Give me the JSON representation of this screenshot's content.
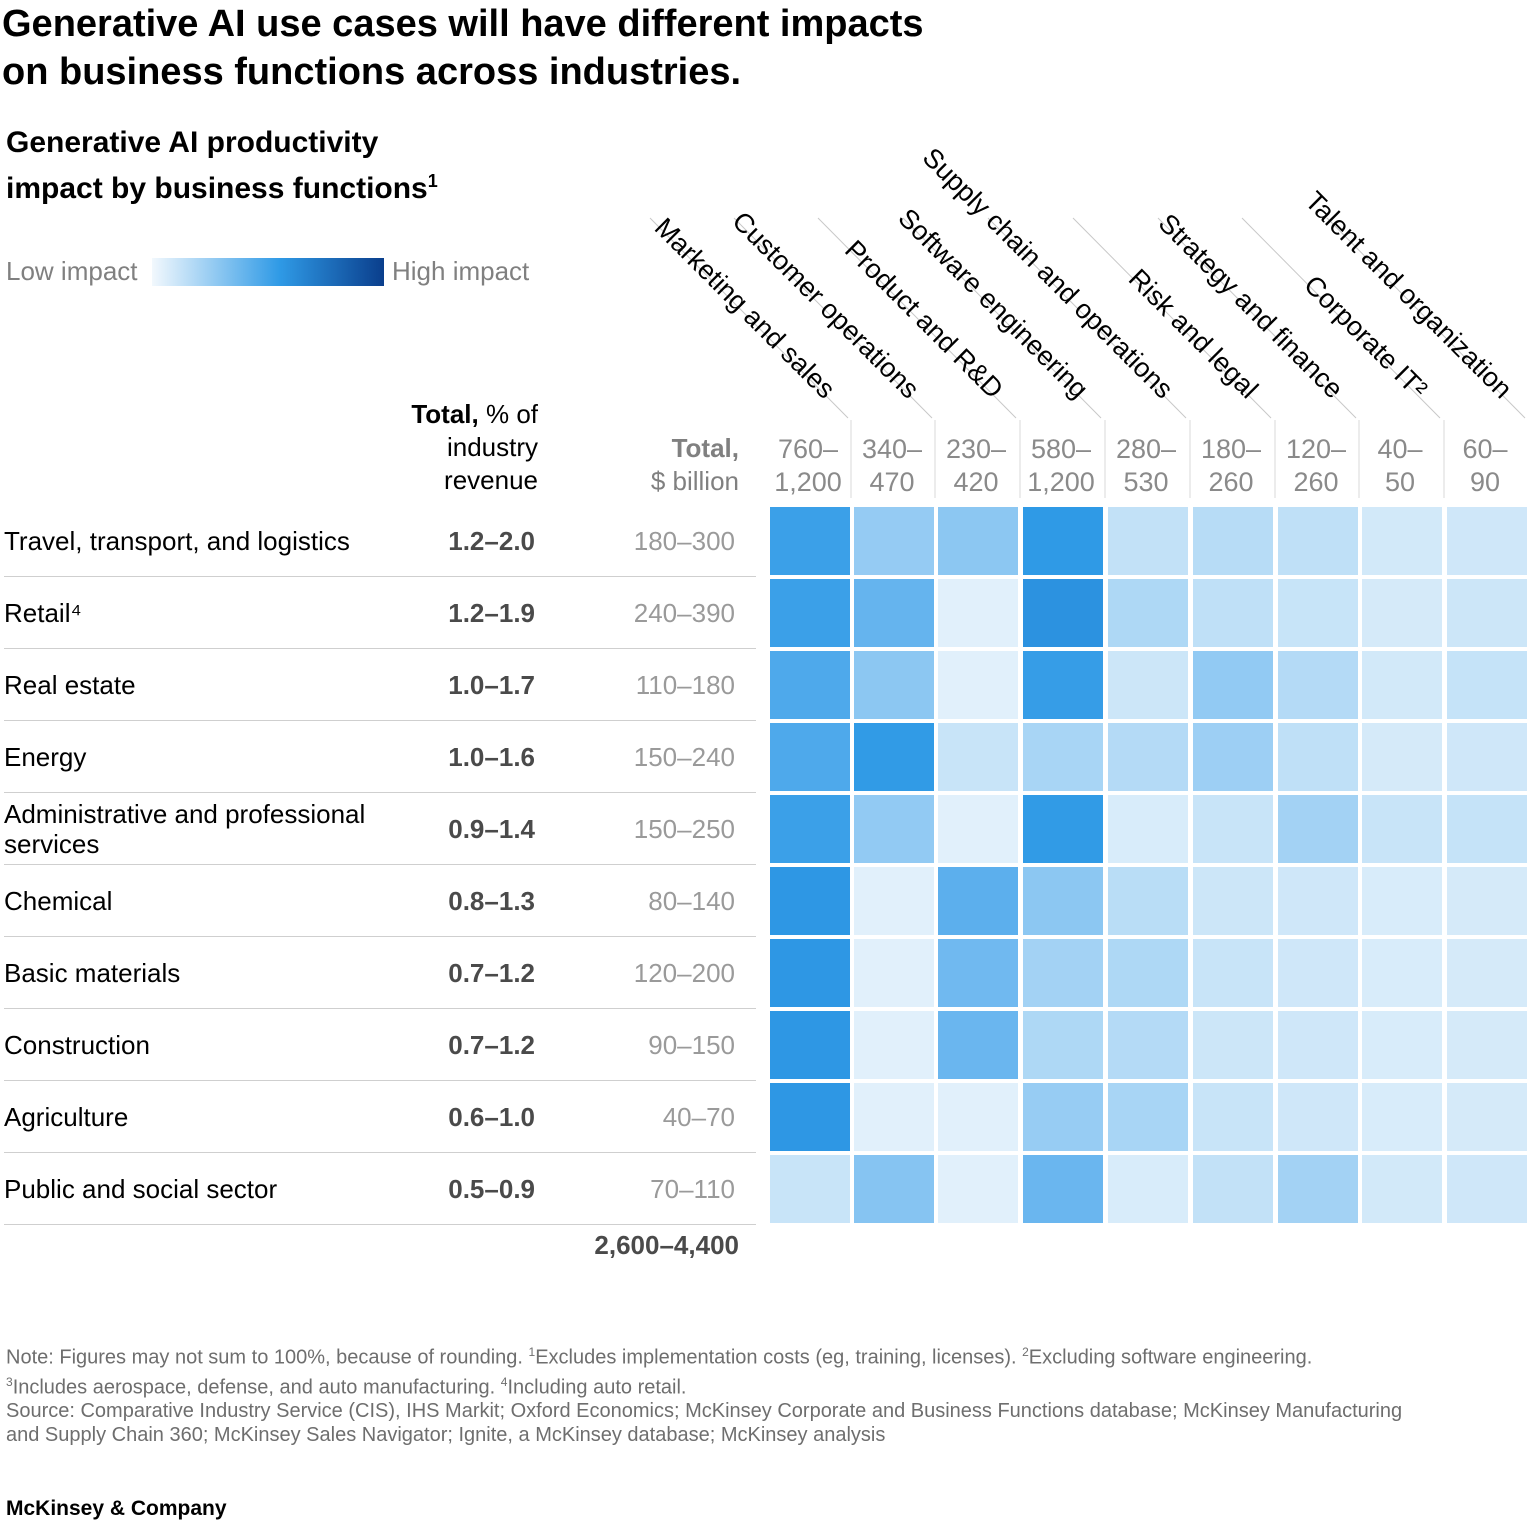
{
  "title_line1": "Generative AI use cases will have different impacts",
  "title_line2": "on business functions across industries.",
  "subtitle_line1": "Generative AI productivity",
  "subtitle_line2": "impact by business functions",
  "subtitle_sup": "1",
  "legend": {
    "low": "Low impact",
    "high": "High impact",
    "colors": [
      "#f2f8fd",
      "#2f9ae6",
      "#0a3e8c"
    ]
  },
  "columns_header": {
    "total_pct_bold": "Total,",
    "total_pct_rest": " % of",
    "total_pct_line2": "industry",
    "total_pct_line3": "revenue",
    "total_bn_line1": "Total,",
    "total_bn_line2": "$ billion"
  },
  "grand_total": "2,600–4,400",
  "chart_data": {
    "type": "heatmap",
    "title": "Generative AI productivity impact by business functions",
    "legend": {
      "low": "Low impact",
      "high": "High impact"
    },
    "columns": [
      {
        "name": "Marketing and sales",
        "total_line1": "760–",
        "total_line2": "1,200"
      },
      {
        "name": "Customer operations",
        "total_line1": "340–",
        "total_line2": "470"
      },
      {
        "name": "Product and R&D",
        "total_line1": "230–",
        "total_line2": "420"
      },
      {
        "name": "Software engineering",
        "total_line1": "580–",
        "total_line2": "1,200"
      },
      {
        "name": "Supply chain and operations",
        "total_line1": "280–",
        "total_line2": "530"
      },
      {
        "name": "Risk and legal",
        "total_line1": "180–",
        "total_line2": "260"
      },
      {
        "name": "Strategy and finance",
        "total_line1": "120–",
        "total_line2": "260"
      },
      {
        "name": "Corporate IT²",
        "total_line1": "40–",
        "total_line2": "50"
      },
      {
        "name": "Talent and organization",
        "total_line1": "60–",
        "total_line2": "90"
      }
    ],
    "rows": [
      {
        "industry": "Travel, transport, and logistics",
        "total_pct": "1.2–2.0",
        "total_bn": "180–300",
        "impact": [
          0.8,
          0.45,
          0.48,
          0.85,
          0.28,
          0.33,
          0.3,
          0.18,
          0.2
        ]
      },
      {
        "industry": "Retail⁴",
        "total_pct": "1.2–1.9",
        "total_bn": "240–390",
        "impact": [
          0.8,
          0.62,
          0.08,
          0.88,
          0.36,
          0.3,
          0.25,
          0.16,
          0.22
        ]
      },
      {
        "industry": "Real estate",
        "total_pct": "1.0–1.7",
        "total_bn": "110–180",
        "impact": [
          0.72,
          0.48,
          0.08,
          0.82,
          0.22,
          0.46,
          0.34,
          0.18,
          0.26
        ]
      },
      {
        "industry": "Energy",
        "total_pct": "1.0–1.6",
        "total_bn": "150–240",
        "impact": [
          0.72,
          0.84,
          0.24,
          0.38,
          0.34,
          0.42,
          0.3,
          0.16,
          0.2
        ]
      },
      {
        "industry": "Administrative and professional services",
        "total_pct": "0.9–1.4",
        "total_bn": "150–250",
        "impact": [
          0.8,
          0.46,
          0.08,
          0.84,
          0.14,
          0.24,
          0.4,
          0.24,
          0.26
        ]
      },
      {
        "industry": "Chemical",
        "total_pct": "0.8–1.3",
        "total_bn": "80–140",
        "impact": [
          0.86,
          0.08,
          0.66,
          0.48,
          0.32,
          0.22,
          0.2,
          0.14,
          0.16
        ]
      },
      {
        "industry": "Basic materials",
        "total_pct": "0.7–1.2",
        "total_bn": "120–200",
        "impact": [
          0.86,
          0.08,
          0.58,
          0.4,
          0.36,
          0.24,
          0.2,
          0.14,
          0.16
        ]
      },
      {
        "industry": "Construction",
        "total_pct": "0.7–1.2",
        "total_bn": "90–150",
        "impact": [
          0.86,
          0.08,
          0.6,
          0.36,
          0.34,
          0.22,
          0.2,
          0.14,
          0.16
        ]
      },
      {
        "industry": "Agriculture",
        "total_pct": "0.6–1.0",
        "total_bn": "40–70",
        "impact": [
          0.86,
          0.08,
          0.08,
          0.44,
          0.38,
          0.24,
          0.2,
          0.14,
          0.16
        ]
      },
      {
        "industry": "Public and social sector",
        "total_pct": "0.5–0.9",
        "total_bn": "70–110",
        "impact": [
          0.24,
          0.5,
          0.08,
          0.6,
          0.14,
          0.28,
          0.4,
          0.18,
          0.2
        ]
      }
    ]
  },
  "notes": {
    "line1_a": "Note: Figures may not sum to 100%, because of rounding. ",
    "line1_sup1": "1",
    "line1_b": "Excludes implementation costs (eg, training, licenses). ",
    "line1_sup2": "2",
    "line1_c": "Excluding software engineering.",
    "line2_sup3": "3",
    "line2_a": "Includes aerospace, defense, and auto manufacturing. ",
    "line2_sup4": "4",
    "line2_b": "Including auto retail.",
    "source_line1": "Source: Comparative Industry Service (CIS), IHS Markit; Oxford Economics; McKinsey Corporate and Business Functions database; McKinsey Manufacturing",
    "source_line2": "and Supply Chain 360; McKinsey Sales Navigator; Ignite, a McKinsey database; McKinsey analysis"
  },
  "brand": "McKinsey & Company"
}
